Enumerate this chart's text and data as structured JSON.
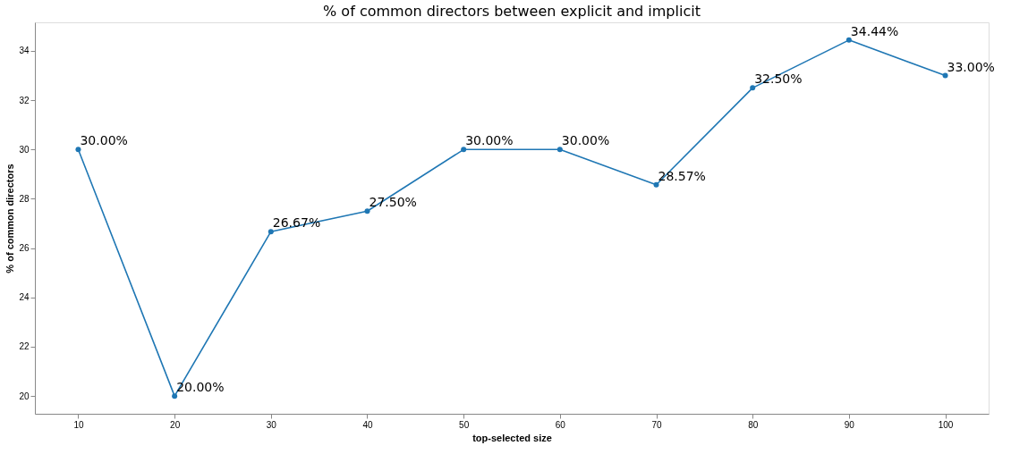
{
  "chart_data": {
    "type": "line",
    "title": "% of common directors between explicit and implicit",
    "xlabel": "top-selected size",
    "ylabel": "% of common directors",
    "x": [
      10,
      20,
      30,
      40,
      50,
      60,
      70,
      80,
      90,
      100
    ],
    "series": [
      {
        "color": "#1f77b4",
        "values": [
          30,
          20,
          26.67,
          27.5,
          30,
          30,
          28.57,
          32.5,
          34.44,
          33
        ],
        "value_labels": [
          "30.00%",
          "20.00%",
          "26.67%",
          "27.50%",
          "30.00%",
          "30.00%",
          "28.57%",
          "32.50%",
          "34.44%",
          "33.00%"
        ]
      }
    ],
    "xlim": [
      5.5,
      104.5
    ],
    "xticks": [
      10,
      20,
      30,
      40,
      50,
      60,
      70,
      80,
      90,
      100
    ],
    "ylim": [
      19.28,
      35.16
    ],
    "yticks": [
      20,
      22,
      24,
      26,
      28,
      30,
      32,
      34
    ],
    "grid": false,
    "marker": "circle",
    "line_style": "solid"
  }
}
